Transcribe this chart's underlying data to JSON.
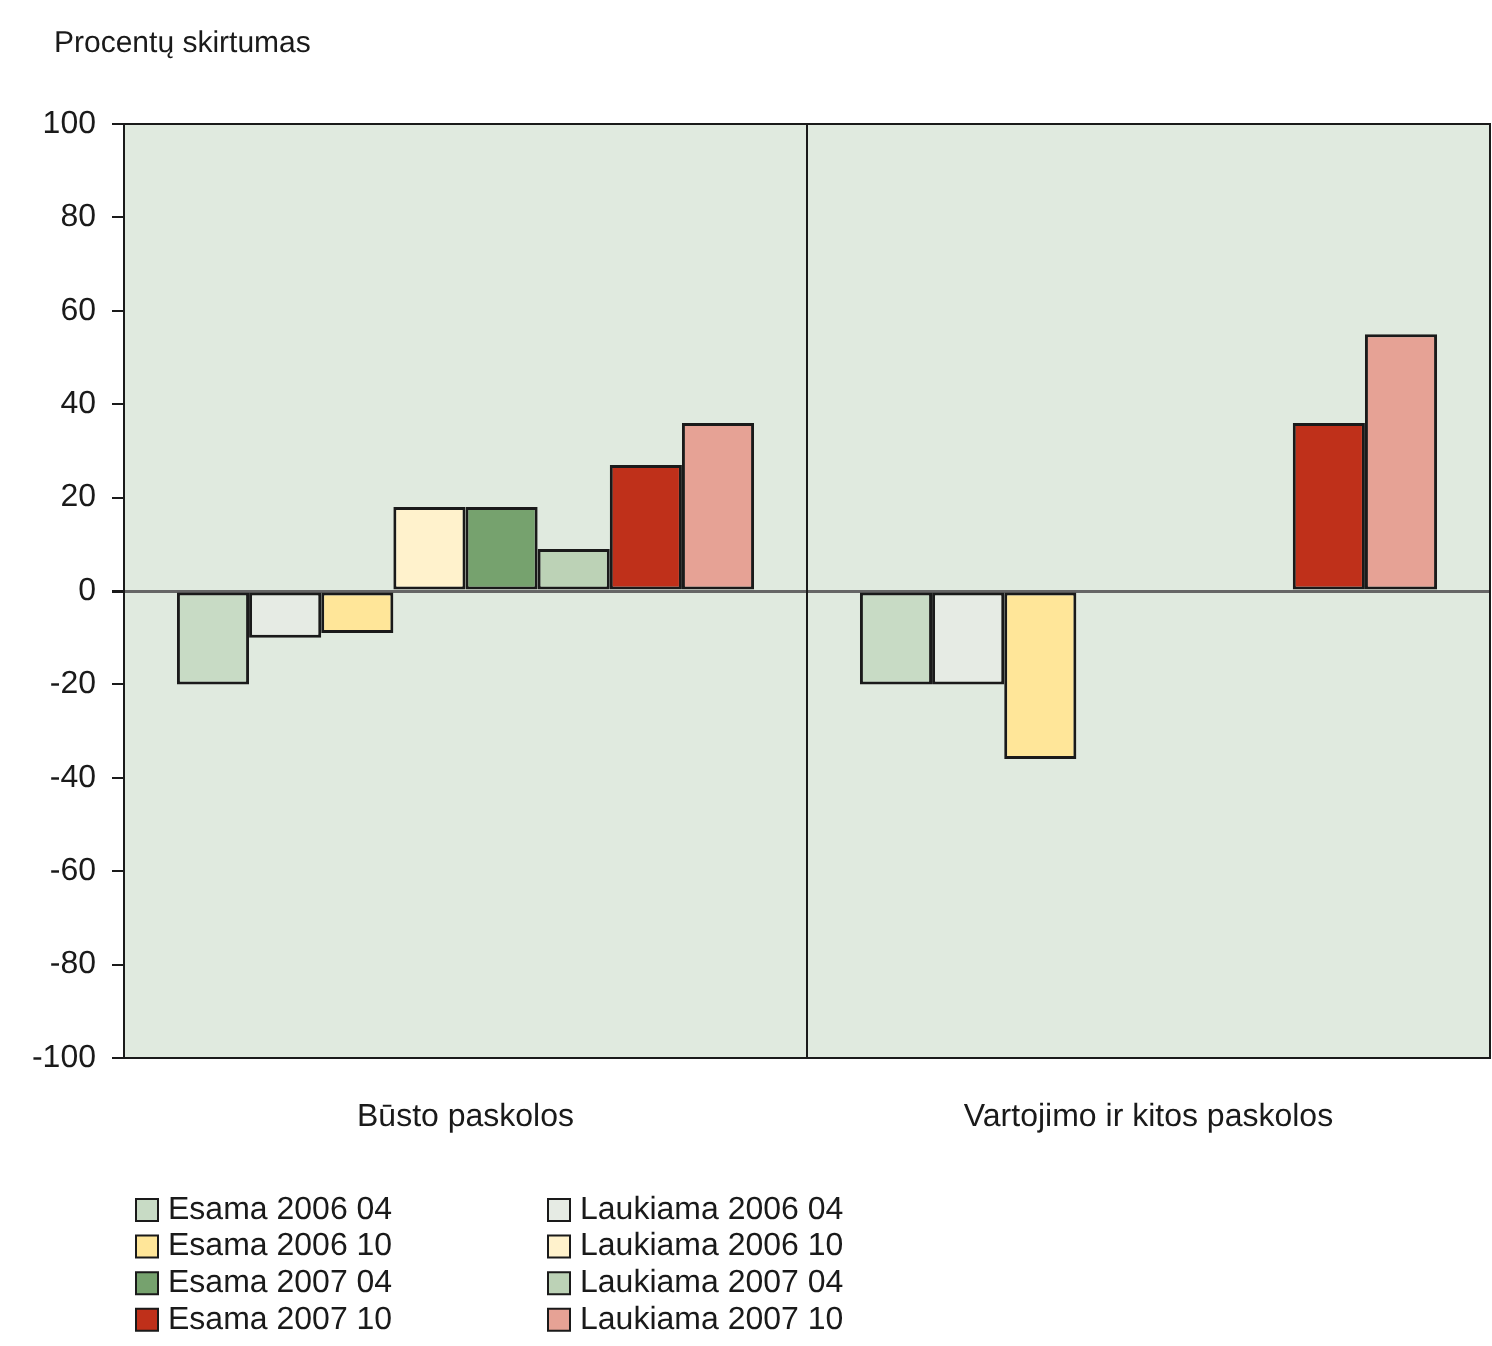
{
  "chart_data": {
    "type": "bar",
    "ylabel": "Procentų skirtumas",
    "categories": [
      "Būsto paskolos",
      "Vartojimo ir kitos paskolos"
    ],
    "series": [
      {
        "name": "Esama 2006 04",
        "color": "#c8dbc5",
        "values": [
          -20,
          -20
        ]
      },
      {
        "name": "Laukiama 2006 04",
        "color": "#e6ebe4",
        "values": [
          -10,
          -20
        ]
      },
      {
        "name": "Esama 2006 10",
        "color": "#ffe699",
        "values": [
          -9,
          -36
        ]
      },
      {
        "name": "Laukiama 2006 10",
        "color": "#fff2cc",
        "values": [
          18,
          null
        ]
      },
      {
        "name": "Esama 2007 04",
        "color": "#76a26e",
        "values": [
          18,
          null
        ]
      },
      {
        "name": "Laukiama 2007 04",
        "color": "#bcd2b6",
        "values": [
          9,
          null
        ]
      },
      {
        "name": "Esama 2007 10",
        "color": "#bf301a",
        "values": [
          27,
          36
        ]
      },
      {
        "name": "Laukiama 2007 10",
        "color": "#e6a295",
        "values": [
          36,
          55
        ]
      }
    ],
    "ylim": [
      -100,
      100
    ],
    "yticks": [
      -100,
      -80,
      -60,
      -40,
      -20,
      0,
      20,
      40,
      60,
      80,
      100
    ],
    "legend": "bottom"
  }
}
